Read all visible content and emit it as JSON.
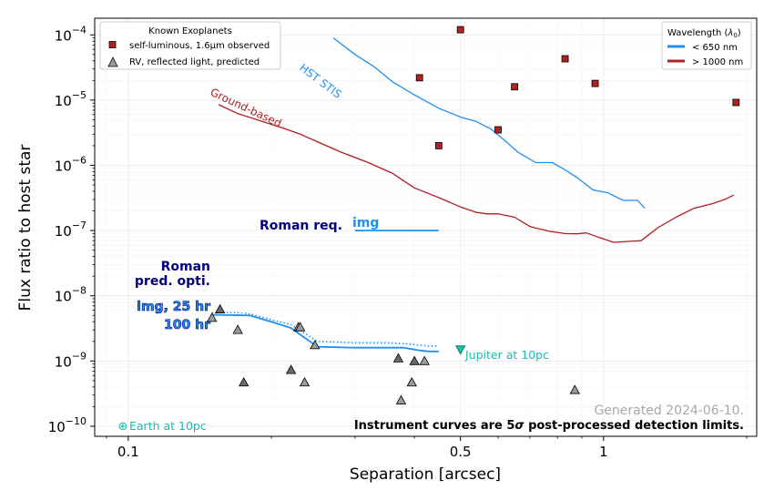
{
  "chart_data": {
    "type": "scatter",
    "xlabel": "Separation [arcsec]",
    "ylabel": "Flux ratio to host star",
    "xscale": "log",
    "yscale": "log",
    "xlim": [
      0.085,
      2.1
    ],
    "ylim": [
      7e-11,
      0.00018
    ],
    "x_ticks": [
      {
        "value": 0.1,
        "label": "0.1"
      },
      {
        "value": 0.5,
        "label": "0.5"
      },
      {
        "value": 1,
        "label": "1"
      }
    ],
    "y_ticks": [
      {
        "exp": -10,
        "label_base": "10",
        "label_exp": "−10"
      },
      {
        "exp": -9,
        "label_base": "10",
        "label_exp": "−9"
      },
      {
        "exp": -8,
        "label_base": "10",
        "label_exp": "−8"
      },
      {
        "exp": -7,
        "label_base": "10",
        "label_exp": "−7"
      },
      {
        "exp": -6,
        "label_base": "10",
        "label_exp": "−6"
      },
      {
        "exp": -5,
        "label_base": "10",
        "label_exp": "−5"
      },
      {
        "exp": -4,
        "label_base": "10",
        "label_exp": "−4"
      }
    ],
    "grid": true,
    "colors": {
      "blue": "#1f8ff0",
      "red": "#b01e22",
      "navy": "#000080",
      "teal": "#16bfb0",
      "square_fill": "#b22222",
      "triangle_fill": "#9a9a9a",
      "grid": "#ececec",
      "footer_grey": "#a8a8a8"
    },
    "series": [
      {
        "name": "HST STIS",
        "color": "#1f8ff0",
        "style": "solid",
        "x": [
          0.27,
          0.3,
          0.33,
          0.36,
          0.4,
          0.45,
          0.5,
          0.54,
          0.58,
          0.62,
          0.66,
          0.72,
          0.78,
          0.82,
          0.88,
          0.95,
          1.02,
          1.1,
          1.18,
          1.22
        ],
        "y": [
          9e-05,
          5e-05,
          3.2e-05,
          1.9e-05,
          1.2e-05,
          7.5e-06,
          5.5e-06,
          4.7e-06,
          3.6e-06,
          2.4e-06,
          1.6e-06,
          1.1e-06,
          1.1e-06,
          9e-07,
          6.5e-07,
          4.2e-07,
          3.8e-07,
          2.9e-07,
          2.9e-07,
          2.2e-07
        ]
      },
      {
        "name": "Ground-based",
        "color": "#b01e22",
        "style": "solid",
        "x": [
          0.155,
          0.17,
          0.19,
          0.21,
          0.23,
          0.25,
          0.28,
          0.32,
          0.36,
          0.4,
          0.45,
          0.5,
          0.54,
          0.57,
          0.6,
          0.65,
          0.7,
          0.77,
          0.83,
          0.88,
          0.92,
          0.98,
          1.05,
          1.12,
          1.2,
          1.3,
          1.42,
          1.55,
          1.7,
          1.8,
          1.88
        ],
        "y": [
          8.5e-06,
          6.2e-06,
          4.8e-06,
          3.8e-06,
          3e-06,
          2.3e-06,
          1.6e-06,
          1.1e-06,
          7.5e-07,
          4.5e-07,
          3.2e-07,
          2.3e-07,
          1.9e-07,
          1.8e-07,
          1.8e-07,
          1.6e-07,
          1.15e-07,
          9.7e-08,
          9e-08,
          8.9e-08,
          9.2e-08,
          7.8e-08,
          6.6e-08,
          6.8e-08,
          7e-08,
          1.1e-07,
          1.6e-07,
          2.2e-07,
          2.6e-07,
          3e-07,
          3.5e-07
        ]
      },
      {
        "name": "Roman req. img",
        "color": "#1f8ff0",
        "style": "solid",
        "x": [
          0.3,
          0.45
        ],
        "y": [
          1e-07,
          1e-07
        ]
      },
      {
        "name": "img, 25 hr",
        "color": "#1f8ff0",
        "style": "dotted",
        "x": [
          0.15,
          0.17,
          0.18,
          0.2,
          0.22,
          0.25,
          0.27,
          0.3,
          0.35,
          0.38,
          0.41,
          0.43,
          0.45
        ],
        "y": [
          5.5e-09,
          5.5e-09,
          5.3e-09,
          4.3e-09,
          3.6e-09,
          2e-09,
          1.95e-09,
          1.9e-09,
          1.9e-09,
          1.85e-09,
          1.75e-09,
          1.7e-09,
          1.7e-09
        ]
      },
      {
        "name": "100 hr",
        "color": "#1f8ff0",
        "style": "solid",
        "x": [
          0.15,
          0.18,
          0.2,
          0.22,
          0.25,
          0.3,
          0.38,
          0.41,
          0.43,
          0.45
        ],
        "y": [
          5.1e-09,
          5e-09,
          4e-09,
          3.2e-09,
          1.65e-09,
          1.6e-09,
          1.6e-09,
          1.45e-09,
          1.4e-09,
          1.4e-09
        ]
      }
    ],
    "points_self_luminous": {
      "name": "self-luminous, 1.6μm observed",
      "marker": "square",
      "x": [
        0.41,
        0.5,
        0.45,
        0.6,
        0.65,
        0.83,
        0.96,
        1.9
      ],
      "y": [
        2.2e-05,
        0.00012,
        2e-06,
        3.5e-06,
        1.6e-05,
        4.3e-05,
        1.8e-05,
        9.2e-06
      ]
    },
    "points_rv": {
      "name": "RV, reflected light, predicted",
      "marker": "triangle",
      "x": [
        0.156,
        0.15,
        0.17,
        0.175,
        0.228,
        0.23,
        0.22,
        0.235,
        0.247,
        0.37,
        0.375,
        0.395,
        0.4,
        0.42,
        0.87
      ],
      "y": [
        6.2e-09,
        4.6e-09,
        3e-09,
        4.7e-10,
        3.3e-09,
        3.3e-09,
        7.3e-10,
        4.7e-10,
        1.75e-09,
        1.1e-09,
        2.5e-10,
        4.7e-10,
        1e-09,
        1e-09,
        3.6e-10
      ]
    },
    "jupiter": {
      "x": 0.5,
      "y": 1.5e-09,
      "label": "Jupiter at 10pc"
    },
    "earth": {
      "x": 0.1,
      "y": 1e-10,
      "label": "Earth at 10pc"
    },
    "legend_known": {
      "title": "Known Exoplanets",
      "items": [
        "self-luminous, 1.6μm observed",
        "RV, reflected light, predicted"
      ]
    },
    "legend_wavelength": {
      "title_prefix": "Wavelength (",
      "title_sym": "λ",
      "title_sub": "0",
      "title_suffix": ")",
      "items": [
        {
          "label": "< 650 nm",
          "color": "#1f8ff0"
        },
        {
          "label": "> 1000 nm",
          "color": "#b01e22"
        }
      ]
    },
    "annotations": {
      "hst": "HST STIS",
      "ground": "Ground-based",
      "roman_req": "Roman req.",
      "img": "img",
      "roman_pred_line1": "Roman",
      "roman_pred_line2": "pred. opti.",
      "img25": "img, 25 hr",
      "hr100": "100 hr",
      "earth_symbol": "⊕",
      "generated": "Generated 2024-06-10.",
      "footnote_prefix": "Instrument curves are 5",
      "footnote_sigma": "σ",
      "footnote_suffix": " post-processed detection limits."
    }
  }
}
